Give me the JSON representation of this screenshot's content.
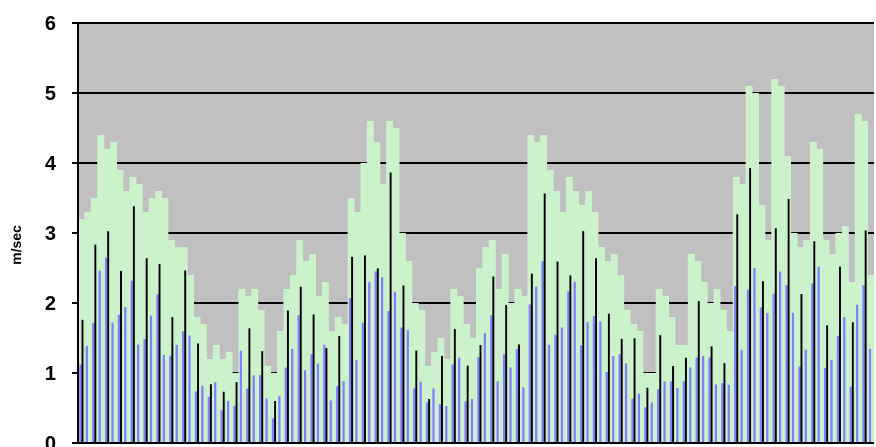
{
  "chart_data": {
    "type": "bar",
    "ylabel": "m/sec",
    "ylim": [
      0,
      6
    ],
    "yticks": [
      0,
      1,
      2,
      3,
      4,
      5,
      6
    ],
    "grid": true,
    "legend": "none",
    "colors": {
      "plot_background": "#c0c0c0",
      "bar_light": "#ccf2cc",
      "bar_blue": "#8080ff",
      "bar_dark": "#000000",
      "gridline": "#000000"
    },
    "series": [
      {
        "values": [
          3.2,
          3.3,
          3.5,
          4.4,
          4.2,
          4.3,
          3.9,
          3.6,
          3.8,
          3.7,
          3.3,
          3.5,
          3.6,
          3.5,
          2.9,
          2.8,
          2.8,
          2.4,
          1.8,
          1.7,
          1.2,
          1.4,
          1.2,
          1.3,
          1.0,
          2.2,
          2.1,
          2.2,
          1.9,
          1.1,
          1.0,
          1.6,
          2.2,
          2.4,
          2.9,
          2.6,
          2.7,
          2.1,
          2.3,
          1.6,
          1.8,
          1.7,
          3.5,
          3.3,
          4.0,
          4.6,
          4.3,
          3.7,
          4.6,
          4.5,
          3.0,
          2.6,
          2.0,
          1.9,
          1.1,
          1.3,
          1.5,
          1.2,
          2.2,
          2.1,
          1.7,
          1.5,
          2.5,
          2.8,
          2.9,
          2.2,
          2.7,
          2.0,
          2.2,
          2.1,
          4.4,
          4.3,
          4.4,
          3.9,
          3.6,
          3.3,
          3.8,
          3.6,
          3.4,
          3.6,
          3.3,
          2.8,
          2.6,
          2.7,
          2.4,
          1.9,
          1.7,
          1.6,
          1.0,
          1.0,
          2.2,
          2.1,
          1.8,
          1.4,
          1.4,
          2.7,
          2.6,
          2.3,
          2.0,
          2.2,
          1.9,
          1.6,
          3.8,
          3.7,
          5.1,
          5.0,
          3.4,
          2.9,
          5.2,
          5.1,
          4.1,
          3.0,
          2.8,
          2.9,
          4.3,
          4.2,
          2.9,
          2.7,
          3.0,
          3.1,
          2.3,
          4.7,
          4.6,
          2.4
        ]
      }
    ]
  }
}
